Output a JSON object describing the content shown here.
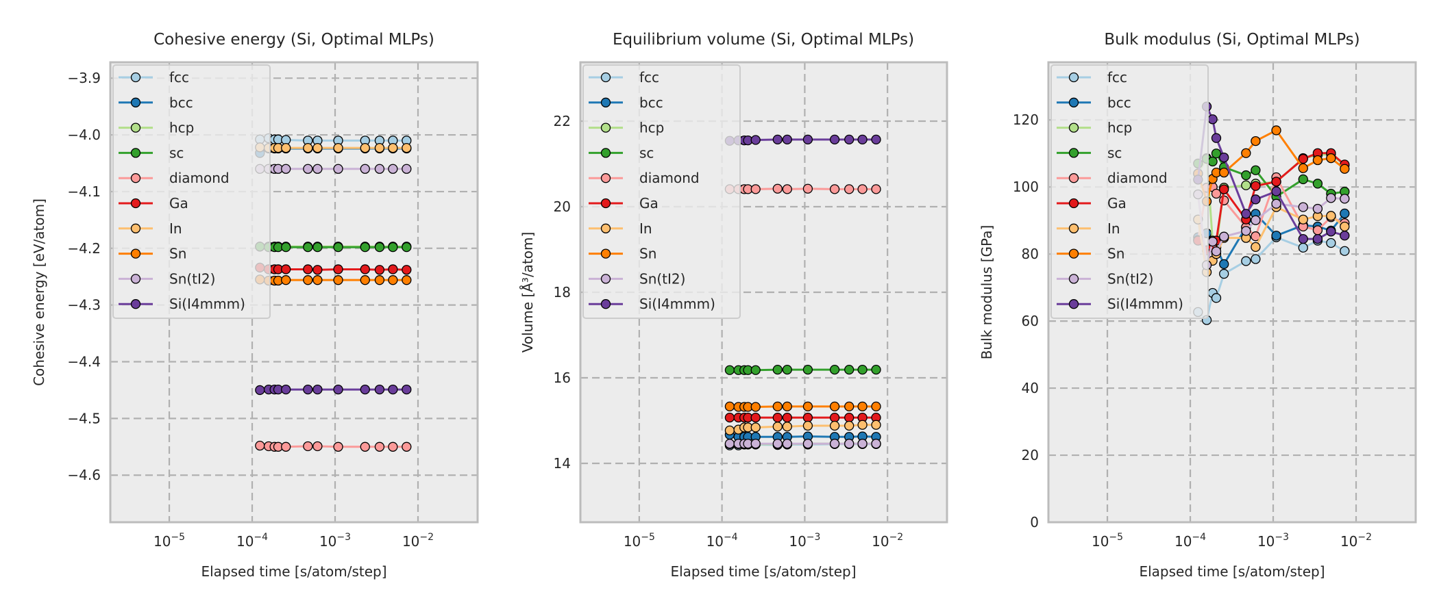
{
  "figure": {
    "xlabel": "Elapsed time [s/atom/step]",
    "xscale": "log",
    "xlim_log10": [
      -5.711,
      -1.281
    ],
    "xtick_exponents": [
      -5,
      -4,
      -3,
      -2
    ],
    "xtick_base": "10",
    "grid": true,
    "legend_placement": "upper-left",
    "legend_entries": [
      "fcc",
      "bcc",
      "hcp",
      "sc",
      "diamond",
      "Ga",
      "In",
      "Sn",
      "Sn(tI2)",
      "Si(I4mmm)"
    ]
  },
  "chart_data": [
    {
      "type": "line",
      "title": "Cohesive energy (Si, Optimal MLPs)",
      "xlabel": "Elapsed time [s/atom/step]",
      "ylabel": "Cohesive energy [eV/atom]",
      "ylim": [
        -4.683,
        -3.872
      ],
      "yticks": [
        -3.9,
        -4.0,
        -4.1,
        -4.2,
        -4.3,
        -4.4,
        -4.5,
        -4.6
      ],
      "ytick_labels": [
        "−3.9",
        "−4.0",
        "−4.1",
        "−4.2",
        "−4.3",
        "−4.4",
        "−4.5",
        "−4.6"
      ],
      "x": [
        0.000124,
        0.000158,
        0.000186,
        0.000206,
        0.000255,
        0.00047,
        0.000614,
        0.00109,
        0.0023,
        0.00344,
        0.00498,
        0.00728
      ],
      "series": [
        {
          "name": "fcc",
          "values": [
            -4.008,
            -4.006,
            -4.008,
            -4.008,
            -4.009,
            -4.01,
            -4.01,
            -4.01,
            -4.01,
            -4.01,
            -4.01,
            -4.01
          ]
        },
        {
          "name": "bcc",
          "values": [
            -4.032,
            -4.024,
            -4.024,
            -4.024,
            -4.024,
            -4.024,
            -4.024,
            -4.024,
            -4.024,
            -4.024,
            -4.024,
            -4.024
          ]
        },
        {
          "name": "hcp",
          "values": [
            -4.197,
            -4.197,
            -4.197,
            -4.197,
            -4.197,
            -4.197,
            -4.197,
            -4.197,
            -4.197,
            -4.197,
            -4.197,
            -4.197
          ]
        },
        {
          "name": "sc",
          "values": [
            -4.197,
            -4.198,
            -4.198,
            -4.198,
            -4.198,
            -4.198,
            -4.198,
            -4.198,
            -4.198,
            -4.198,
            -4.198,
            -4.198
          ]
        },
        {
          "name": "diamond",
          "values": [
            -4.548,
            -4.549,
            -4.55,
            -4.55,
            -4.55,
            -4.549,
            -4.549,
            -4.55,
            -4.55,
            -4.55,
            -4.55,
            -4.55
          ]
        },
        {
          "name": "Ga",
          "values": [
            -4.234,
            -4.237,
            -4.237,
            -4.237,
            -4.237,
            -4.237,
            -4.238,
            -4.237,
            -4.237,
            -4.238,
            -4.237,
            -4.238
          ]
        },
        {
          "name": "In",
          "values": [
            -4.022,
            -4.023,
            -4.023,
            -4.023,
            -4.023,
            -4.023,
            -4.023,
            -4.023,
            -4.023,
            -4.023,
            -4.023,
            -4.023
          ]
        },
        {
          "name": "Sn",
          "values": [
            -4.255,
            -4.257,
            -4.257,
            -4.257,
            -4.256,
            -4.256,
            -4.256,
            -4.256,
            -4.256,
            -4.256,
            -4.256,
            -4.256
          ]
        },
        {
          "name": "Sn(tI2)",
          "values": [
            -4.06,
            -4.06,
            -4.06,
            -4.06,
            -4.06,
            -4.06,
            -4.06,
            -4.06,
            -4.06,
            -4.06,
            -4.06,
            -4.06
          ]
        },
        {
          "name": "Si(I4mmm)",
          "values": [
            -4.45,
            -4.449,
            -4.449,
            -4.449,
            -4.449,
            -4.449,
            -4.449,
            -4.449,
            -4.449,
            -4.449,
            -4.449,
            -4.449
          ]
        }
      ]
    },
    {
      "type": "line",
      "title": "Equilibrium volume (Si, Optimal MLPs)",
      "xlabel": "Elapsed time [s/atom/step]",
      "ylabel": "Volume [Å³/atom]",
      "ylim": [
        12.624,
        23.376
      ],
      "yticks": [
        14,
        16,
        18,
        20,
        22
      ],
      "ytick_labels": [
        "14",
        "16",
        "18",
        "20",
        "22"
      ],
      "x": [
        0.000124,
        0.000158,
        0.000186,
        0.000206,
        0.000255,
        0.00047,
        0.000614,
        0.00109,
        0.0023,
        0.00344,
        0.00498,
        0.00728
      ],
      "series": [
        {
          "name": "fcc",
          "values": [
            14.42,
            14.42,
            14.44,
            14.44,
            14.44,
            14.43,
            14.44,
            14.44,
            14.45,
            14.45,
            14.45,
            14.45
          ]
        },
        {
          "name": "bcc",
          "values": [
            14.67,
            14.62,
            14.62,
            14.62,
            14.62,
            14.62,
            14.62,
            14.63,
            14.62,
            14.62,
            14.63,
            14.62
          ]
        },
        {
          "name": "hcp",
          "values": [
            14.45,
            14.45,
            14.45,
            14.45,
            14.45,
            14.45,
            14.45,
            14.46,
            14.46,
            14.46,
            14.46,
            14.46
          ]
        },
        {
          "name": "sc",
          "values": [
            16.18,
            16.18,
            16.18,
            16.18,
            16.18,
            16.19,
            16.19,
            16.19,
            16.19,
            16.19,
            16.19,
            16.19
          ]
        },
        {
          "name": "diamond",
          "values": [
            20.41,
            20.41,
            20.41,
            20.41,
            20.41,
            20.42,
            20.41,
            20.42,
            20.41,
            20.41,
            20.41,
            20.41
          ]
        },
        {
          "name": "Ga",
          "values": [
            15.07,
            15.07,
            15.07,
            15.07,
            15.07,
            15.07,
            15.07,
            15.07,
            15.07,
            15.07,
            15.07,
            15.07
          ]
        },
        {
          "name": "In",
          "values": [
            14.77,
            14.79,
            14.84,
            14.84,
            14.84,
            14.86,
            14.86,
            14.88,
            14.88,
            14.88,
            14.9,
            14.9
          ]
        },
        {
          "name": "Sn",
          "values": [
            15.33,
            15.32,
            15.32,
            15.32,
            15.32,
            15.33,
            15.33,
            15.33,
            15.33,
            15.33,
            15.33,
            15.33
          ]
        },
        {
          "name": "Sn(tI2)",
          "values": [
            14.46,
            14.46,
            14.46,
            14.46,
            14.46,
            14.46,
            14.46,
            14.46,
            14.46,
            14.46,
            14.46,
            14.46
          ]
        },
        {
          "name": "Si(I4mmm)",
          "values": [
            21.54,
            21.55,
            21.55,
            21.55,
            21.56,
            21.57,
            21.57,
            21.57,
            21.57,
            21.57,
            21.57,
            21.57
          ]
        }
      ]
    },
    {
      "type": "line",
      "title": "Bulk modulus (Si, Optimal MLPs)",
      "xlabel": "Elapsed time [s/atom/step]",
      "ylabel": "Bulk modulus [GPa]",
      "ylim": [
        0,
        137.2
      ],
      "yticks": [
        0,
        20,
        40,
        60,
        80,
        100,
        120
      ],
      "ytick_labels": [
        "0",
        "20",
        "40",
        "60",
        "80",
        "100",
        "120"
      ],
      "x": [
        0.000124,
        0.000158,
        0.000186,
        0.000206,
        0.000255,
        0.00047,
        0.000614,
        0.00109,
        0.0023,
        0.00344,
        0.00498,
        0.00728
      ],
      "series": [
        {
          "name": "fcc",
          "values": [
            62.7,
            60.3,
            68.4,
            66.9,
            74.1,
            77.9,
            78.5,
            85.0,
            81.9,
            84.0,
            83.3,
            80.9
          ]
        },
        {
          "name": "bcc",
          "values": [
            85.0,
            86.2,
            84.0,
            82.0,
            77.0,
            88.0,
            92.0,
            85.5,
            88.6,
            88.2,
            87.0,
            92.1
          ]
        },
        {
          "name": "hcp",
          "values": [
            104.0,
            108.6,
            84.0,
            82.0,
            99.8,
            100.5,
            101.0,
            101.5,
            108.6,
            109.5,
            109.8,
            106.5
          ]
        },
        {
          "name": "sc",
          "values": [
            107.0,
            108.4,
            107.6,
            110.0,
            105.9,
            103.5,
            105.0,
            97.1,
            102.3,
            101.0,
            98.0,
            98.6
          ]
        },
        {
          "name": "diamond",
          "values": [
            84.2,
            99.8,
            100.0,
            98.0,
            96.0,
            88.0,
            85.3,
            102.9,
            88.2,
            87.1,
            91.0,
            89.2
          ]
        },
        {
          "name": "Ga",
          "values": [
            84.0,
            81.1,
            82.0,
            84.0,
            99.3,
            90.3,
            100.3,
            101.6,
            108.4,
            110.1,
            110.1,
            106.7
          ]
        },
        {
          "name": "In",
          "values": [
            90.3,
            74.6,
            78.0,
            80.0,
            84.8,
            84.8,
            82.1,
            94.0,
            90.3,
            91.3,
            91.4,
            88.2
          ]
        },
        {
          "name": "Sn",
          "values": [
            104.0,
            95.7,
            102.4,
            104.3,
            104.3,
            110.1,
            113.7,
            116.9,
            105.6,
            108.0,
            108.6,
            105.4
          ]
        },
        {
          "name": "Sn(tI2)",
          "values": [
            97.8,
            76.7,
            83.7,
            80.8,
            85.2,
            86.9,
            90.1,
            95.0,
            94.0,
            93.5,
            96.7,
            96.5
          ]
        },
        {
          "name": "Si(I4mmm)",
          "values": [
            102.2,
            124.0,
            120.2,
            114.6,
            108.8,
            92.0,
            96.3,
            98.7,
            84.5,
            84.5,
            86.7,
            85.5
          ]
        }
      ]
    }
  ],
  "series_colors": {
    "fcc": "#a6cee3",
    "bcc": "#1f78b4",
    "hcp": "#b2df8a",
    "sc": "#33a02c",
    "diamond": "#fb9a99",
    "Ga": "#e31a1c",
    "In": "#fdbf6f",
    "Sn": "#ff7f00",
    "Sn(tI2)": "#cab2d6",
    "Si(I4mmm)": "#6a3d9a"
  },
  "style": {
    "axes_facecolor": "#ececec",
    "axes_edgecolor": "#bcbcbc",
    "grid_color": "#b0b0b0",
    "text_color": "#262626",
    "marker_edgecolor": "#000000"
  }
}
